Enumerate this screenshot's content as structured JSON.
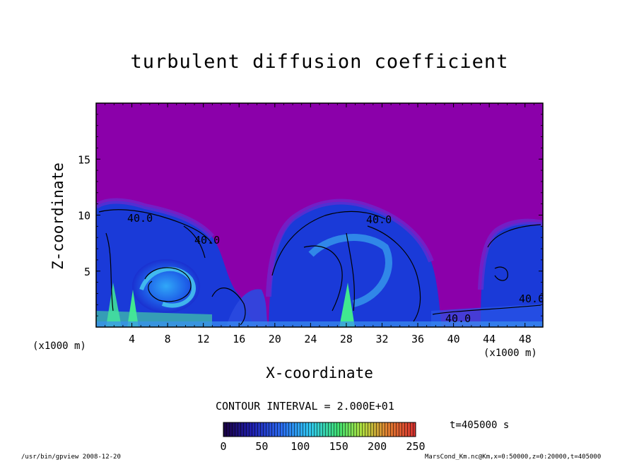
{
  "chart_data": {
    "type": "heatmap",
    "title": "turbulent diffusion coefficient",
    "xlabel": "X-coordinate",
    "ylabel": "Z-coordinate",
    "x_unit_label": "(x1000 m)",
    "xlim": [
      0,
      50
    ],
    "ylim": [
      0,
      20
    ],
    "x_ticks": [
      4,
      8,
      12,
      16,
      20,
      24,
      28,
      32,
      36,
      40,
      44,
      48
    ],
    "y_ticks": [
      5,
      10,
      15
    ],
    "contour_interval_label": "CONTOUR INTERVAL = 2.000E+01",
    "contour_labels": [
      "40.0",
      "40.0",
      "40.0",
      "40.0",
      "40.0"
    ],
    "colorbar": {
      "ticks": [
        0,
        50,
        100,
        150,
        200,
        250
      ],
      "min": 0,
      "max": 250
    },
    "time_label": "t=405000 s",
    "colors": {
      "background_field": "#8b00aa",
      "low": "#1a2fd8",
      "mid": "#2fa0ff",
      "high": "#48e890"
    }
  },
  "footer": {
    "left": "/usr/bin/gpview   2008-12-20",
    "right": "MarsCond_Km.nc@Km,x=0:50000,z=0:20000,t=405000"
  }
}
